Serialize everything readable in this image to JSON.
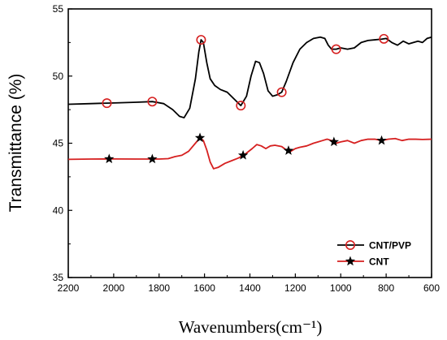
{
  "chart_data": {
    "type": "line",
    "xlabel": "Wavenumbers(cm⁻¹)",
    "ylabel": "Transmittance (%)",
    "xlim": [
      2200,
      600
    ],
    "ylim": [
      35,
      55
    ],
    "x_reversed": true,
    "xticks": [
      2200,
      2000,
      1800,
      1600,
      1400,
      1200,
      1000,
      800,
      600
    ],
    "yticks": [
      35,
      40,
      45,
      50,
      55
    ],
    "grid": false,
    "legend_position": "bottom-right",
    "series": [
      {
        "name": "CNT/PVP",
        "color": "#000000",
        "marker": "open-circle",
        "marker_color": "#d62020",
        "points": [
          [
            2200,
            47.9
          ],
          [
            2100,
            47.95
          ],
          [
            2000,
            48.0
          ],
          [
            1900,
            48.05
          ],
          [
            1830,
            48.1
          ],
          [
            1780,
            47.95
          ],
          [
            1740,
            47.5
          ],
          [
            1710,
            47.0
          ],
          [
            1690,
            46.9
          ],
          [
            1665,
            47.6
          ],
          [
            1640,
            49.8
          ],
          [
            1625,
            51.8
          ],
          [
            1615,
            52.7
          ],
          [
            1605,
            52.5
          ],
          [
            1590,
            51.0
          ],
          [
            1575,
            49.8
          ],
          [
            1555,
            49.3
          ],
          [
            1530,
            49.0
          ],
          [
            1500,
            48.8
          ],
          [
            1470,
            48.3
          ],
          [
            1440,
            47.8
          ],
          [
            1415,
            48.5
          ],
          [
            1395,
            50.0
          ],
          [
            1375,
            51.1
          ],
          [
            1358,
            51.0
          ],
          [
            1340,
            50.2
          ],
          [
            1320,
            48.9
          ],
          [
            1300,
            48.5
          ],
          [
            1280,
            48.6
          ],
          [
            1260,
            48.8
          ],
          [
            1240,
            49.6
          ],
          [
            1210,
            51.0
          ],
          [
            1180,
            52.0
          ],
          [
            1150,
            52.5
          ],
          [
            1120,
            52.8
          ],
          [
            1090,
            52.9
          ],
          [
            1070,
            52.8
          ],
          [
            1055,
            52.3
          ],
          [
            1040,
            52.0
          ],
          [
            1020,
            52.0
          ],
          [
            1000,
            52.1
          ],
          [
            970,
            52.0
          ],
          [
            940,
            52.1
          ],
          [
            910,
            52.5
          ],
          [
            880,
            52.65
          ],
          [
            850,
            52.7
          ],
          [
            820,
            52.75
          ],
          [
            800,
            52.8
          ],
          [
            775,
            52.5
          ],
          [
            750,
            52.3
          ],
          [
            725,
            52.6
          ],
          [
            700,
            52.4
          ],
          [
            680,
            52.5
          ],
          [
            660,
            52.6
          ],
          [
            640,
            52.5
          ],
          [
            620,
            52.8
          ],
          [
            600,
            52.9
          ]
        ],
        "marker_x": [
          2030,
          1830,
          1615,
          1440,
          1260,
          1020,
          810
        ]
      },
      {
        "name": "CNT",
        "color": "#d62020",
        "marker": "star",
        "marker_color": "#000000",
        "points": [
          [
            2200,
            43.8
          ],
          [
            2100,
            43.82
          ],
          [
            2000,
            43.83
          ],
          [
            1900,
            43.82
          ],
          [
            1800,
            43.82
          ],
          [
            1760,
            43.85
          ],
          [
            1730,
            44.0
          ],
          [
            1700,
            44.1
          ],
          [
            1670,
            44.4
          ],
          [
            1640,
            45.0
          ],
          [
            1620,
            45.4
          ],
          [
            1605,
            45.2
          ],
          [
            1590,
            44.5
          ],
          [
            1575,
            43.6
          ],
          [
            1560,
            43.1
          ],
          [
            1540,
            43.2
          ],
          [
            1510,
            43.5
          ],
          [
            1480,
            43.7
          ],
          [
            1450,
            43.9
          ],
          [
            1420,
            44.2
          ],
          [
            1390,
            44.6
          ],
          [
            1370,
            44.9
          ],
          [
            1350,
            44.8
          ],
          [
            1330,
            44.6
          ],
          [
            1310,
            44.8
          ],
          [
            1290,
            44.85
          ],
          [
            1260,
            44.75
          ],
          [
            1240,
            44.5
          ],
          [
            1220,
            44.4
          ],
          [
            1200,
            44.6
          ],
          [
            1180,
            44.7
          ],
          [
            1150,
            44.8
          ],
          [
            1120,
            45.0
          ],
          [
            1100,
            45.1
          ],
          [
            1080,
            45.2
          ],
          [
            1060,
            45.3
          ],
          [
            1040,
            45.2
          ],
          [
            1020,
            45.0
          ],
          [
            1000,
            45.1
          ],
          [
            970,
            45.2
          ],
          [
            940,
            45.0
          ],
          [
            910,
            45.2
          ],
          [
            880,
            45.3
          ],
          [
            850,
            45.3
          ],
          [
            820,
            45.2
          ],
          [
            790,
            45.3
          ],
          [
            760,
            45.35
          ],
          [
            730,
            45.2
          ],
          [
            700,
            45.3
          ],
          [
            670,
            45.3
          ],
          [
            640,
            45.28
          ],
          [
            600,
            45.3
          ]
        ],
        "marker_x": [
          2020,
          1830,
          1620,
          1430,
          1230,
          1030,
          820
        ]
      }
    ]
  }
}
